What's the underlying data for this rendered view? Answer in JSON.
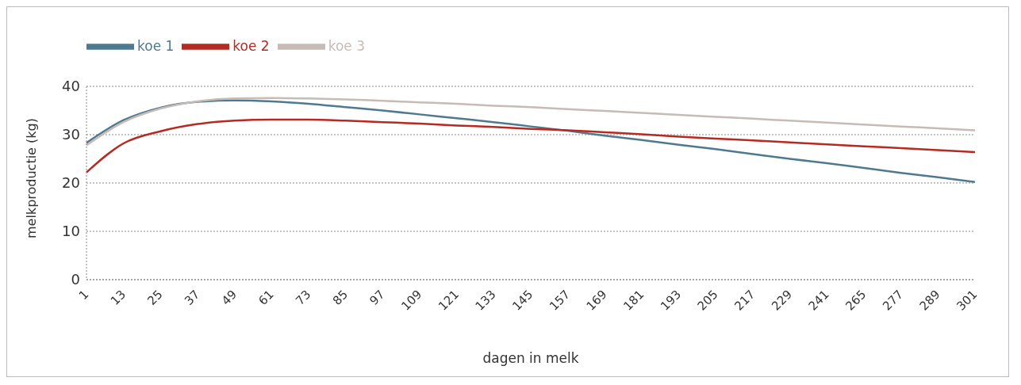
{
  "chart_data": {
    "type": "line",
    "xlabel": "dagen in melk",
    "ylabel": "melkproductie (kg)",
    "categories": [
      "1",
      "13",
      "25",
      "37",
      "49",
      "61",
      "73",
      "85",
      "97",
      "109",
      "121",
      "133",
      "145",
      "157",
      "169",
      "181",
      "193",
      "205",
      "217",
      "229",
      "241",
      "265",
      "277",
      "289",
      "301"
    ],
    "series": [
      {
        "name": "koe 1",
        "color": "#4e7a8f",
        "values": [
          28.3,
          33.0,
          35.6,
          36.8,
          37.1,
          36.9,
          36.4,
          35.7,
          35.0,
          34.2,
          33.4,
          32.6,
          31.7,
          30.8,
          29.8,
          28.9,
          27.9,
          27.0,
          26.0,
          25.0,
          24.1,
          23.1,
          22.1,
          21.2,
          20.2
        ]
      },
      {
        "name": "koe 2",
        "color": "#b52a22",
        "values": [
          22.2,
          28.2,
          30.7,
          32.2,
          32.9,
          33.1,
          33.1,
          32.9,
          32.6,
          32.3,
          31.9,
          31.6,
          31.2,
          30.9,
          30.5,
          30.1,
          29.6,
          29.2,
          28.8,
          28.4,
          28.0,
          27.6,
          27.2,
          26.8,
          26.4
        ]
      },
      {
        "name": "koe 3",
        "color": "#c7bbb6",
        "values": [
          27.8,
          32.6,
          35.4,
          36.9,
          37.5,
          37.6,
          37.5,
          37.3,
          37.0,
          36.7,
          36.4,
          36.0,
          35.7,
          35.3,
          34.9,
          34.5,
          34.1,
          33.7,
          33.3,
          32.9,
          32.5,
          32.1,
          31.7,
          31.3,
          30.9
        ]
      }
    ],
    "ylim": [
      0,
      40
    ],
    "yticks": [
      0,
      10,
      20,
      30,
      40
    ],
    "grid": "y",
    "legend": "top left",
    "marker": "none",
    "line_style": "solid"
  }
}
